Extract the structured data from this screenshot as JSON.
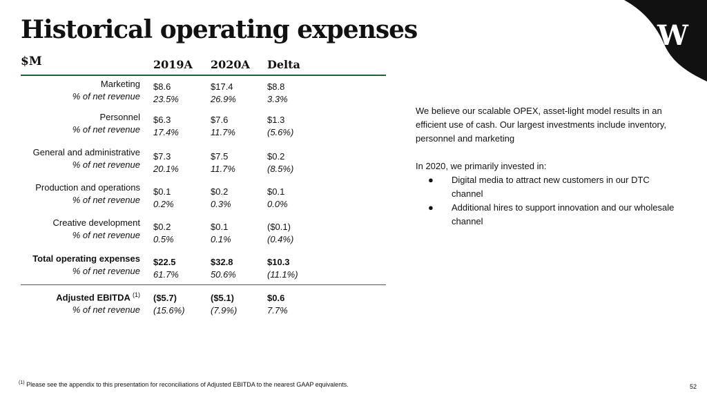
{
  "slide": {
    "title": "Historical operating expenses",
    "unit": "$M",
    "page_number": "52",
    "logo_letter": "W"
  },
  "table": {
    "columns": [
      "2019A",
      "2020A",
      "Delta"
    ],
    "rows": [
      {
        "label": "Marketing",
        "sublabel": "% of net revenue",
        "values": [
          "$8.6",
          "$17.4",
          "$8.8"
        ],
        "pcts": [
          "23.5%",
          "26.9%",
          "3.3%"
        ]
      },
      {
        "label": "Personnel",
        "sublabel": "% of net revenue",
        "values": [
          "$6.3",
          "$7.6",
          "$1.3"
        ],
        "pcts": [
          "17.4%",
          "11.7%",
          "(5.6%)"
        ]
      },
      {
        "label": "General and administrative",
        "sublabel": "% of net revenue",
        "values": [
          "$7.3",
          "$7.5",
          "$0.2"
        ],
        "pcts": [
          "20.1%",
          "11.7%",
          "(8.5%)"
        ]
      },
      {
        "label": "Production and operations",
        "sublabel": "% of net revenue",
        "values": [
          "$0.1",
          "$0.2",
          "$0.1"
        ],
        "pcts": [
          "0.2%",
          "0.3%",
          "0.0%"
        ]
      },
      {
        "label": "Creative development",
        "sublabel": "% of net revenue",
        "values": [
          "$0.2",
          "$0.1",
          "($0.1)"
        ],
        "pcts": [
          "0.5%",
          "0.1%",
          "(0.4%)"
        ]
      },
      {
        "label": "Total operating expenses",
        "sublabel": "% of net revenue",
        "values": [
          "$22.5",
          "$32.8",
          "$10.3"
        ],
        "pcts": [
          "61.7%",
          "50.6%",
          "(11.1%)"
        ]
      },
      {
        "label": "Adjusted EBITDA",
        "label_sup": "(1)",
        "sublabel": "% of net revenue",
        "values": [
          "($5.7)",
          "($5.1)",
          "$0.6"
        ],
        "pcts": [
          "(15.6%)",
          "(7.9%)",
          "7.7%"
        ]
      }
    ]
  },
  "commentary": {
    "paragraph": "We believe our scalable OPEX, asset-light model results in an efficient use of cash. Our largest investments include inventory, personnel and marketing",
    "intro": "In 2020, we primarily invested in:",
    "bullet_glyph": "●",
    "bullets": [
      "Digital media to attract new customers in our DTC channel",
      "Additional hires to support innovation and  our wholesale channel"
    ]
  },
  "footnote": {
    "marker": "(1)",
    "text": "Please see the appendix to this presentation for reconciliations of Adjusted EBITDA to the nearest GAAP equivalents."
  },
  "colors": {
    "rule_green": "#1f5c3a",
    "logo_black": "#111111",
    "text": "#111111"
  }
}
